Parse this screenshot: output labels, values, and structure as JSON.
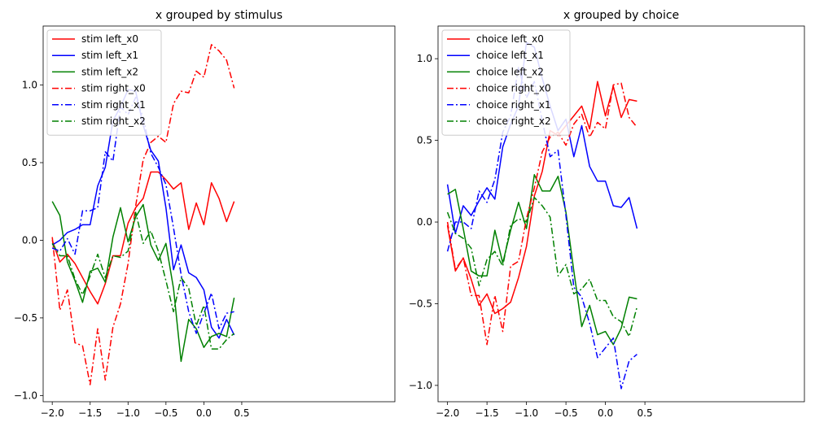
{
  "chart_data": [
    {
      "type": "line",
      "title": "x grouped by stimulus",
      "xlabel": "",
      "ylabel": "",
      "xlim": [
        -2.12,
        2.52
      ],
      "ylim": [
        -1.04,
        1.38
      ],
      "xticks": [
        -2.0,
        -1.5,
        -1.0,
        -0.5,
        0.0,
        0.5
      ],
      "xtick_labels": [
        "−2.0",
        "−1.5",
        "−1.0",
        "−0.5",
        "0.0",
        "0.5"
      ],
      "yticks": [
        -1.0,
        -0.5,
        0.0,
        0.5,
        1.0
      ],
      "ytick_labels": [
        "−1.0",
        "−0.5",
        "0.0",
        "0.5",
        "1.0"
      ],
      "legend_position": "upper-left",
      "grid": false,
      "x": [
        -2.0,
        -1.9,
        -1.8,
        -1.7,
        -1.6,
        -1.5,
        -1.4,
        -1.3,
        -1.2,
        -1.1,
        -1.0,
        -0.9,
        -0.8,
        -0.7,
        -0.6,
        -0.5,
        -0.4,
        -0.3,
        -0.2,
        -0.1,
        0.0,
        0.1,
        0.2,
        0.3,
        0.4
      ],
      "series": [
        {
          "name": "stim left_x0",
          "color": "#ff0000",
          "dash": "solid",
          "values": [
            0.0,
            -0.14,
            -0.09,
            -0.15,
            -0.24,
            -0.33,
            -0.41,
            -0.28,
            -0.1,
            -0.1,
            0.11,
            0.21,
            0.27,
            0.44,
            0.44,
            0.39,
            0.33,
            0.37,
            0.07,
            0.24,
            0.1,
            0.37,
            0.27,
            0.12,
            0.25
          ]
        },
        {
          "name": "stim left_x1",
          "color": "#0000ff",
          "dash": "solid",
          "values": [
            -0.03,
            0.0,
            0.05,
            0.07,
            0.1,
            0.1,
            0.35,
            0.47,
            0.77,
            0.86,
            0.97,
            0.96,
            0.74,
            0.58,
            0.51,
            0.21,
            -0.19,
            -0.03,
            -0.21,
            -0.24,
            -0.32,
            -0.56,
            -0.63,
            -0.51,
            -0.61
          ]
        },
        {
          "name": "stim left_x2",
          "color": "#008000",
          "dash": "solid",
          "values": [
            0.25,
            0.16,
            -0.14,
            -0.26,
            -0.4,
            -0.2,
            -0.18,
            -0.27,
            0.02,
            0.21,
            -0.01,
            0.15,
            0.23,
            -0.03,
            -0.13,
            -0.02,
            -0.31,
            -0.78,
            -0.51,
            -0.57,
            -0.69,
            -0.62,
            -0.6,
            -0.62,
            -0.37
          ]
        },
        {
          "name": "stim right_x0",
          "color": "#ff0000",
          "dash": "dashdot",
          "values": [
            0.02,
            -0.45,
            -0.32,
            -0.66,
            -0.68,
            -0.93,
            -0.57,
            -0.9,
            -0.56,
            -0.41,
            -0.15,
            0.22,
            0.52,
            0.63,
            0.67,
            0.63,
            0.88,
            0.96,
            0.95,
            1.09,
            1.05,
            1.26,
            1.22,
            1.16,
            0.98
          ]
        },
        {
          "name": "stim right_x1",
          "color": "#0000ff",
          "dash": "dashdot",
          "values": [
            -0.05,
            -0.07,
            0.01,
            -0.09,
            0.19,
            0.19,
            0.21,
            0.57,
            0.51,
            0.86,
            0.81,
            0.92,
            0.79,
            0.56,
            0.47,
            0.36,
            0.08,
            -0.22,
            -0.46,
            -0.6,
            -0.47,
            -0.34,
            -0.57,
            -0.47,
            -0.46
          ]
        },
        {
          "name": "stim right_x2",
          "color": "#008000",
          "dash": "dashdot",
          "values": [
            -0.02,
            -0.1,
            -0.1,
            -0.25,
            -0.35,
            -0.23,
            -0.09,
            -0.24,
            -0.1,
            -0.11,
            -0.07,
            0.18,
            -0.02,
            0.06,
            -0.07,
            -0.26,
            -0.46,
            -0.24,
            -0.31,
            -0.55,
            -0.42,
            -0.7,
            -0.7,
            -0.64,
            -0.6
          ]
        }
      ]
    },
    {
      "type": "line",
      "title": "x grouped by choice",
      "xlabel": "",
      "ylabel": "",
      "xlim": [
        -2.12,
        2.52
      ],
      "ylim": [
        -1.1,
        1.2
      ],
      "xticks": [
        -2.0,
        -1.5,
        -1.0,
        -0.5,
        0.0,
        0.5
      ],
      "xtick_labels": [
        "−2.0",
        "−1.5",
        "−1.0",
        "−0.5",
        "0.0",
        "0.5"
      ],
      "yticks": [
        -1.0,
        -0.5,
        0.0,
        0.5,
        1.0
      ],
      "ytick_labels": [
        "−1.0",
        "−0.5",
        "0.0",
        "0.5",
        "1.0"
      ],
      "legend_position": "upper-left",
      "grid": false,
      "x": [
        -2.0,
        -1.9,
        -1.8,
        -1.7,
        -1.6,
        -1.5,
        -1.4,
        -1.3,
        -1.2,
        -1.1,
        -1.0,
        -0.9,
        -0.8,
        -0.7,
        -0.6,
        -0.5,
        -0.4,
        -0.3,
        -0.2,
        -0.1,
        0.0,
        0.1,
        0.2,
        0.3,
        0.4
      ],
      "series": [
        {
          "name": "choice left_x0",
          "color": "#ff0000",
          "dash": "solid",
          "values": [
            -0.02,
            -0.3,
            -0.22,
            -0.35,
            -0.51,
            -0.44,
            -0.56,
            -0.53,
            -0.49,
            -0.34,
            -0.15,
            0.16,
            0.31,
            0.56,
            0.53,
            0.59,
            0.65,
            0.71,
            0.57,
            0.86,
            0.65,
            0.83,
            0.64,
            0.75,
            0.74
          ]
        },
        {
          "name": "choice left_x1",
          "color": "#0000ff",
          "dash": "solid",
          "values": [
            0.23,
            -0.07,
            0.1,
            0.04,
            0.13,
            0.21,
            0.14,
            0.46,
            0.6,
            0.71,
            1.1,
            1.07,
            0.88,
            0.71,
            0.56,
            0.63,
            0.4,
            0.59,
            0.34,
            0.25,
            0.25,
            0.1,
            0.09,
            0.15,
            -0.04
          ]
        },
        {
          "name": "choice left_x2",
          "color": "#008000",
          "dash": "solid",
          "values": [
            0.17,
            0.2,
            -0.04,
            -0.3,
            -0.33,
            -0.33,
            -0.05,
            -0.25,
            -0.05,
            0.12,
            -0.04,
            0.29,
            0.19,
            0.19,
            0.28,
            0.06,
            -0.3,
            -0.64,
            -0.51,
            -0.69,
            -0.67,
            -0.75,
            -0.65,
            -0.46,
            -0.47
          ]
        },
        {
          "name": "choice right_x0",
          "color": "#ff0000",
          "dash": "dashdot",
          "values": [
            0.0,
            -0.29,
            -0.22,
            -0.45,
            -0.45,
            -0.75,
            -0.45,
            -0.67,
            -0.27,
            -0.24,
            0.02,
            0.21,
            0.43,
            0.52,
            0.55,
            0.47,
            0.6,
            0.66,
            0.52,
            0.61,
            0.57,
            0.84,
            0.85,
            0.64,
            0.58
          ]
        },
        {
          "name": "choice right_x1",
          "color": "#0000ff",
          "dash": "dashdot",
          "values": [
            -0.18,
            0.0,
            0.0,
            -0.04,
            0.19,
            0.12,
            0.26,
            0.55,
            0.65,
            0.95,
            0.76,
            0.86,
            0.62,
            0.4,
            0.44,
            0.04,
            -0.4,
            -0.46,
            -0.62,
            -0.83,
            -0.77,
            -0.71,
            -1.02,
            -0.85,
            -0.81
          ]
        },
        {
          "name": "choice right_x2",
          "color": "#008000",
          "dash": "dashdot",
          "values": [
            0.06,
            -0.07,
            -0.1,
            -0.16,
            -0.39,
            -0.23,
            -0.18,
            -0.27,
            -0.02,
            0.02,
            0.0,
            0.15,
            0.1,
            0.03,
            -0.33,
            -0.26,
            -0.44,
            -0.41,
            -0.35,
            -0.48,
            -0.48,
            -0.58,
            -0.61,
            -0.7,
            -0.52
          ]
        }
      ]
    }
  ]
}
